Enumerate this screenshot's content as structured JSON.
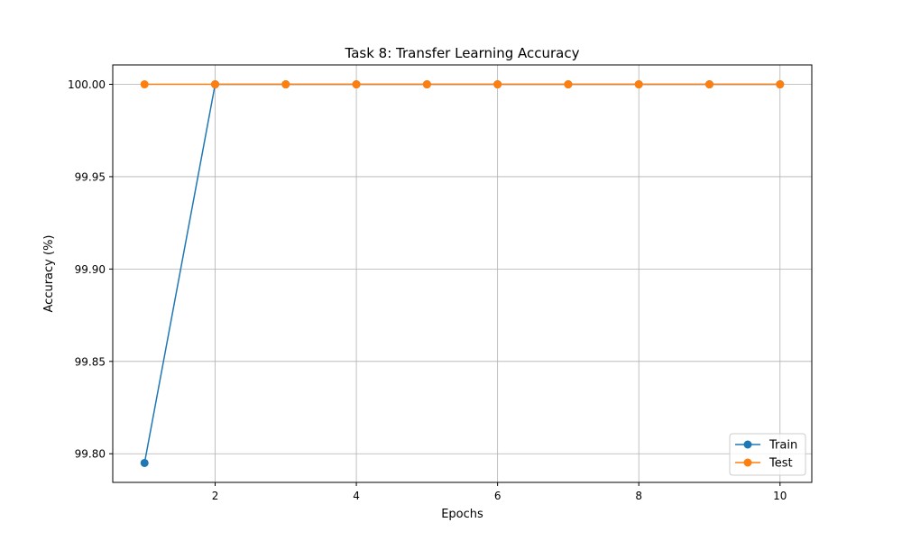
{
  "chart_data": {
    "type": "line",
    "title": "Task 8: Transfer Learning Accuracy",
    "xlabel": "Epochs",
    "ylabel": "Accuracy (%)",
    "x": [
      1,
      2,
      3,
      4,
      5,
      6,
      7,
      8,
      9,
      10
    ],
    "xticks": [
      2,
      4,
      6,
      8,
      10
    ],
    "xtick_labels": [
      "2",
      "4",
      "6",
      "8",
      "10"
    ],
    "xlim": [
      0.55,
      10.45
    ],
    "yticks": [
      99.8,
      99.85,
      99.9,
      99.95,
      100.0
    ],
    "ytick_labels": [
      "99.80",
      "99.85",
      "99.90",
      "99.95",
      "100.00"
    ],
    "ylim": [
      99.7845,
      100.0105
    ],
    "grid": true,
    "legend_position": "lower-right",
    "series": [
      {
        "name": "Train",
        "color": "#1f77b4",
        "marker": "circle",
        "values": [
          99.795,
          100.0,
          100.0,
          100.0,
          100.0,
          100.0,
          100.0,
          100.0,
          100.0,
          100.0
        ]
      },
      {
        "name": "Test",
        "color": "#ff7f0e",
        "marker": "circle",
        "values": [
          100.0,
          100.0,
          100.0,
          100.0,
          100.0,
          100.0,
          100.0,
          100.0,
          100.0,
          100.0
        ]
      }
    ]
  }
}
